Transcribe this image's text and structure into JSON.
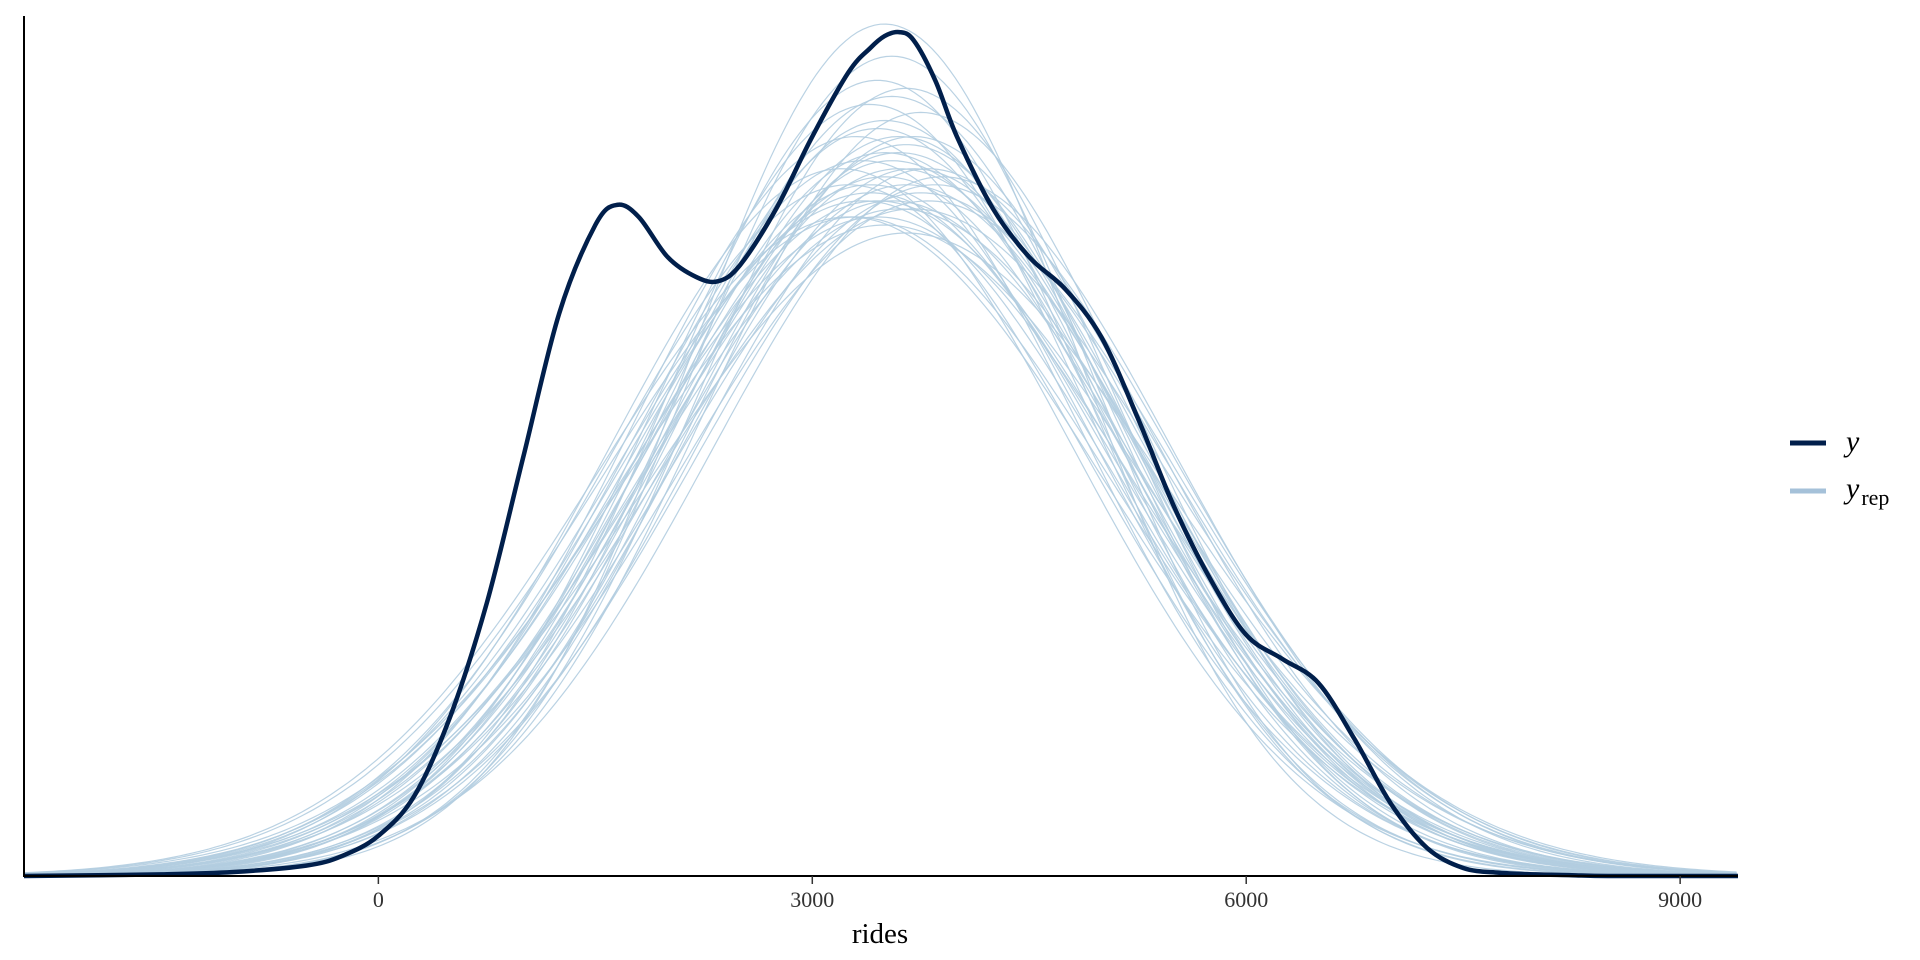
{
  "chart_data": {
    "type": "line",
    "xlabel": "rides",
    "ylabel": "",
    "xlim": [
      -2450,
      9400
    ],
    "xticks": [
      0,
      3000,
      6000,
      9000
    ],
    "x_tick_labels": [
      "0",
      "3000",
      "6000",
      "9000"
    ],
    "ylim": [
      0,
      1.07
    ],
    "y_ticks_shown": false,
    "grid": false,
    "legend_position": "right",
    "series": [
      {
        "name": "y",
        "color": "#011f4b",
        "role": "observed",
        "x": [
          -2450,
          -1500,
          -1000,
          -500,
          -250,
          0,
          250,
          500,
          750,
          1000,
          1250,
          1500,
          1650,
          1800,
          2000,
          2200,
          2350,
          2500,
          2750,
          3000,
          3250,
          3400,
          3500,
          3600,
          3700,
          3850,
          4000,
          4250,
          4500,
          4750,
          5000,
          5250,
          5500,
          5750,
          6000,
          6250,
          6500,
          6750,
          7000,
          7250,
          7500,
          7750,
          8000,
          8250,
          8500,
          9000,
          9400
        ],
        "values": [
          0.0,
          0.002,
          0.005,
          0.013,
          0.025,
          0.05,
          0.1,
          0.2,
          0.34,
          0.52,
          0.7,
          0.81,
          0.835,
          0.82,
          0.77,
          0.745,
          0.74,
          0.76,
          0.83,
          0.92,
          1.0,
          1.03,
          1.045,
          1.05,
          1.04,
          0.99,
          0.92,
          0.83,
          0.77,
          0.73,
          0.67,
          0.57,
          0.46,
          0.37,
          0.3,
          0.27,
          0.24,
          0.17,
          0.09,
          0.035,
          0.01,
          0.004,
          0.002,
          0.001,
          0.0,
          0.0,
          0.0
        ]
      },
      {
        "name": "y_rep",
        "label": "y",
        "label_sub": "rep",
        "color": "#b3cde0",
        "legend_color": "#a5c1d9",
        "role": "replicated",
        "draws": [
          {
            "mu": 3400,
            "sd": 1650,
            "peak": 0.86
          },
          {
            "mu": 3600,
            "sd": 1550,
            "peak": 0.92
          },
          {
            "mu": 3450,
            "sd": 1700,
            "peak": 0.84
          },
          {
            "mu": 3700,
            "sd": 1600,
            "peak": 0.88
          },
          {
            "mu": 3300,
            "sd": 1750,
            "peak": 0.82
          },
          {
            "mu": 3550,
            "sd": 1500,
            "peak": 0.97
          },
          {
            "mu": 3650,
            "sd": 1650,
            "peak": 0.86
          },
          {
            "mu": 3500,
            "sd": 1600,
            "peak": 0.9
          },
          {
            "mu": 3750,
            "sd": 1700,
            "peak": 0.85
          },
          {
            "mu": 3350,
            "sd": 1600,
            "peak": 0.89
          },
          {
            "mu": 3600,
            "sd": 1750,
            "peak": 0.83
          },
          {
            "mu": 3450,
            "sd": 1550,
            "peak": 0.93
          },
          {
            "mu": 3800,
            "sd": 1600,
            "peak": 0.88
          },
          {
            "mu": 3250,
            "sd": 1650,
            "peak": 0.86
          },
          {
            "mu": 3550,
            "sd": 1700,
            "peak": 0.84
          },
          {
            "mu": 3700,
            "sd": 1550,
            "peak": 0.92
          },
          {
            "mu": 3400,
            "sd": 1500,
            "peak": 0.96
          },
          {
            "mu": 3650,
            "sd": 1800,
            "peak": 0.8
          },
          {
            "mu": 3500,
            "sd": 1650,
            "peak": 0.87
          },
          {
            "mu": 3300,
            "sd": 1550,
            "peak": 0.92
          },
          {
            "mu": 3850,
            "sd": 1650,
            "peak": 0.86
          },
          {
            "mu": 3450,
            "sd": 1750,
            "peak": 0.82
          },
          {
            "mu": 3600,
            "sd": 1600,
            "peak": 0.9
          },
          {
            "mu": 3550,
            "sd": 1400,
            "peak": 1.02
          },
          {
            "mu": 3500,
            "sd": 1350,
            "peak": 1.06
          },
          {
            "mu": 3200,
            "sd": 1600,
            "peak": 0.88
          },
          {
            "mu": 3750,
            "sd": 1500,
            "peak": 0.95
          },
          {
            "mu": 3400,
            "sd": 1700,
            "peak": 0.85
          },
          {
            "mu": 3650,
            "sd": 1550,
            "peak": 0.91
          },
          {
            "mu": 3500,
            "sd": 1800,
            "peak": 0.81
          },
          {
            "mu": 3900,
            "sd": 1600,
            "peak": 0.87
          },
          {
            "mu": 3350,
            "sd": 1700,
            "peak": 0.84
          },
          {
            "mu": 3600,
            "sd": 1650,
            "peak": 0.88
          },
          {
            "mu": 3450,
            "sd": 1450,
            "peak": 0.99
          },
          {
            "mu": 3700,
            "sd": 1750,
            "peak": 0.83
          },
          {
            "mu": 3550,
            "sd": 1600,
            "peak": 0.89
          },
          {
            "mu": 3250,
            "sd": 1750,
            "peak": 0.82
          },
          {
            "mu": 3800,
            "sd": 1700,
            "peak": 0.84
          },
          {
            "mu": 3500,
            "sd": 1550,
            "peak": 0.94
          },
          {
            "mu": 3650,
            "sd": 1450,
            "peak": 0.98
          }
        ]
      }
    ]
  }
}
